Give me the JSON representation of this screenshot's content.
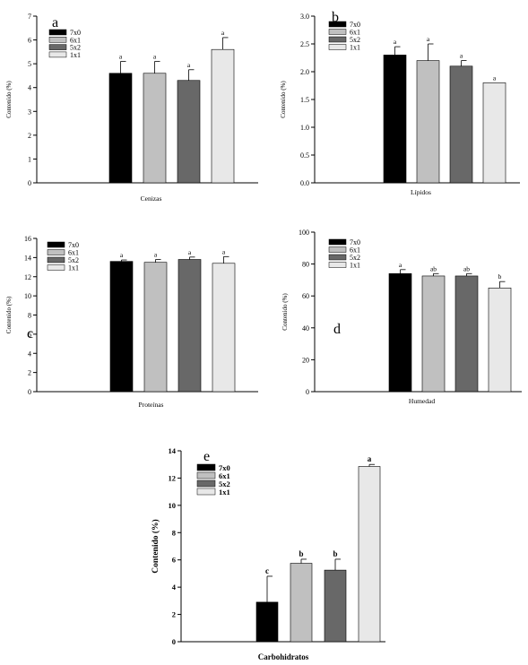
{
  "bar_colors": [
    "#000000",
    "#c0c0c0",
    "#686868",
    "#e8e8e8"
  ],
  "chart_data": [
    {
      "type": "bar",
      "panel_letter": "a",
      "categories": [
        "Cenizas"
      ],
      "xlabel": "Cenizas",
      "ylabel": "Contenido (%)",
      "ylim": [
        0,
        7
      ],
      "yticks": [
        "0",
        "1",
        "2",
        "3",
        "4",
        "5",
        "6",
        "7"
      ],
      "legend_placement": "top-left",
      "series": [
        {
          "name": "7x0",
          "values": [
            4.6
          ],
          "error": [
            0.5
          ],
          "letter": "a"
        },
        {
          "name": "6x1",
          "values": [
            4.6
          ],
          "error": [
            0.5
          ],
          "letter": "a"
        },
        {
          "name": "5x2",
          "values": [
            4.3
          ],
          "error": [
            0.45
          ],
          "letter": "a"
        },
        {
          "name": "1x1",
          "values": [
            5.6
          ],
          "error": [
            0.5
          ],
          "letter": "a"
        }
      ]
    },
    {
      "type": "bar",
      "panel_letter": "b",
      "categories": [
        "Lípidos"
      ],
      "xlabel": "Lípidos",
      "ylabel": "Contenido (%)",
      "ylim": [
        0,
        3
      ],
      "yticks": [
        "0.0",
        "0.5",
        "1.0",
        "1.5",
        "2.0",
        "2.5",
        "3.0"
      ],
      "legend_placement": "top-left",
      "series": [
        {
          "name": "7x0",
          "values": [
            2.3
          ],
          "error": [
            0.15
          ],
          "letter": "a"
        },
        {
          "name": "6x1",
          "values": [
            2.2
          ],
          "error": [
            0.3
          ],
          "letter": "a"
        },
        {
          "name": "5x2",
          "values": [
            2.1
          ],
          "error": [
            0.1
          ],
          "letter": "a"
        },
        {
          "name": "1x1",
          "values": [
            1.8
          ],
          "error": [
            0
          ],
          "letter": "a"
        }
      ]
    },
    {
      "type": "bar",
      "panel_letter": "c",
      "categories": [
        "Proteínas"
      ],
      "xlabel": "Proteínas",
      "ylabel": "Contenido (%)",
      "ylim": [
        0,
        16
      ],
      "yticks": [
        "0",
        "2",
        "4",
        "6",
        "8",
        "10",
        "12",
        "14",
        "16"
      ],
      "legend_placement": "top-left",
      "series": [
        {
          "name": "7x0",
          "values": [
            13.6
          ],
          "error": [
            0.15
          ],
          "letter": "a"
        },
        {
          "name": "6x1",
          "values": [
            13.5
          ],
          "error": [
            0.3
          ],
          "letter": "a"
        },
        {
          "name": "5x2",
          "values": [
            13.8
          ],
          "error": [
            0.25
          ],
          "letter": "a"
        },
        {
          "name": "1x1",
          "values": [
            13.4
          ],
          "error": [
            0.7
          ],
          "letter": "a"
        }
      ]
    },
    {
      "type": "bar",
      "panel_letter": "d",
      "categories": [
        "Humedad"
      ],
      "xlabel": "Humedad",
      "ylabel": "Contenido (%)",
      "ylim": [
        0,
        100
      ],
      "yticks": [
        "0",
        "20",
        "40",
        "60",
        "80",
        "100"
      ],
      "legend_placement": "top-left",
      "series": [
        {
          "name": "7x0",
          "values": [
            74
          ],
          "error": [
            2.5
          ],
          "letter": "a"
        },
        {
          "name": "6x1",
          "values": [
            72.5
          ],
          "error": [
            1.5
          ],
          "letter": "ab"
        },
        {
          "name": "5x2",
          "values": [
            72.5
          ],
          "error": [
            1.5
          ],
          "letter": "ab"
        },
        {
          "name": "1x1",
          "values": [
            65
          ],
          "error": [
            4
          ],
          "letter": "b"
        }
      ]
    },
    {
      "type": "bar",
      "panel_letter": "e",
      "categories": [
        "Carbohidratos"
      ],
      "xlabel": "Carbohidratos",
      "ylabel": "Contenido (%)",
      "ylim": [
        0,
        14
      ],
      "yticks": [
        "0",
        "2",
        "4",
        "6",
        "8",
        "10",
        "12",
        "14"
      ],
      "legend_placement": "top-left",
      "series": [
        {
          "name": "7x0",
          "values": [
            2.9
          ],
          "error": [
            1.9
          ],
          "letter": "c"
        },
        {
          "name": "6x1",
          "values": [
            5.75
          ],
          "error": [
            0.3
          ],
          "letter": "b"
        },
        {
          "name": "5x2",
          "values": [
            5.25
          ],
          "error": [
            0.8
          ],
          "letter": "b"
        },
        {
          "name": "1x1",
          "values": [
            12.85
          ],
          "error": [
            0.15
          ],
          "letter": "a"
        }
      ]
    }
  ]
}
